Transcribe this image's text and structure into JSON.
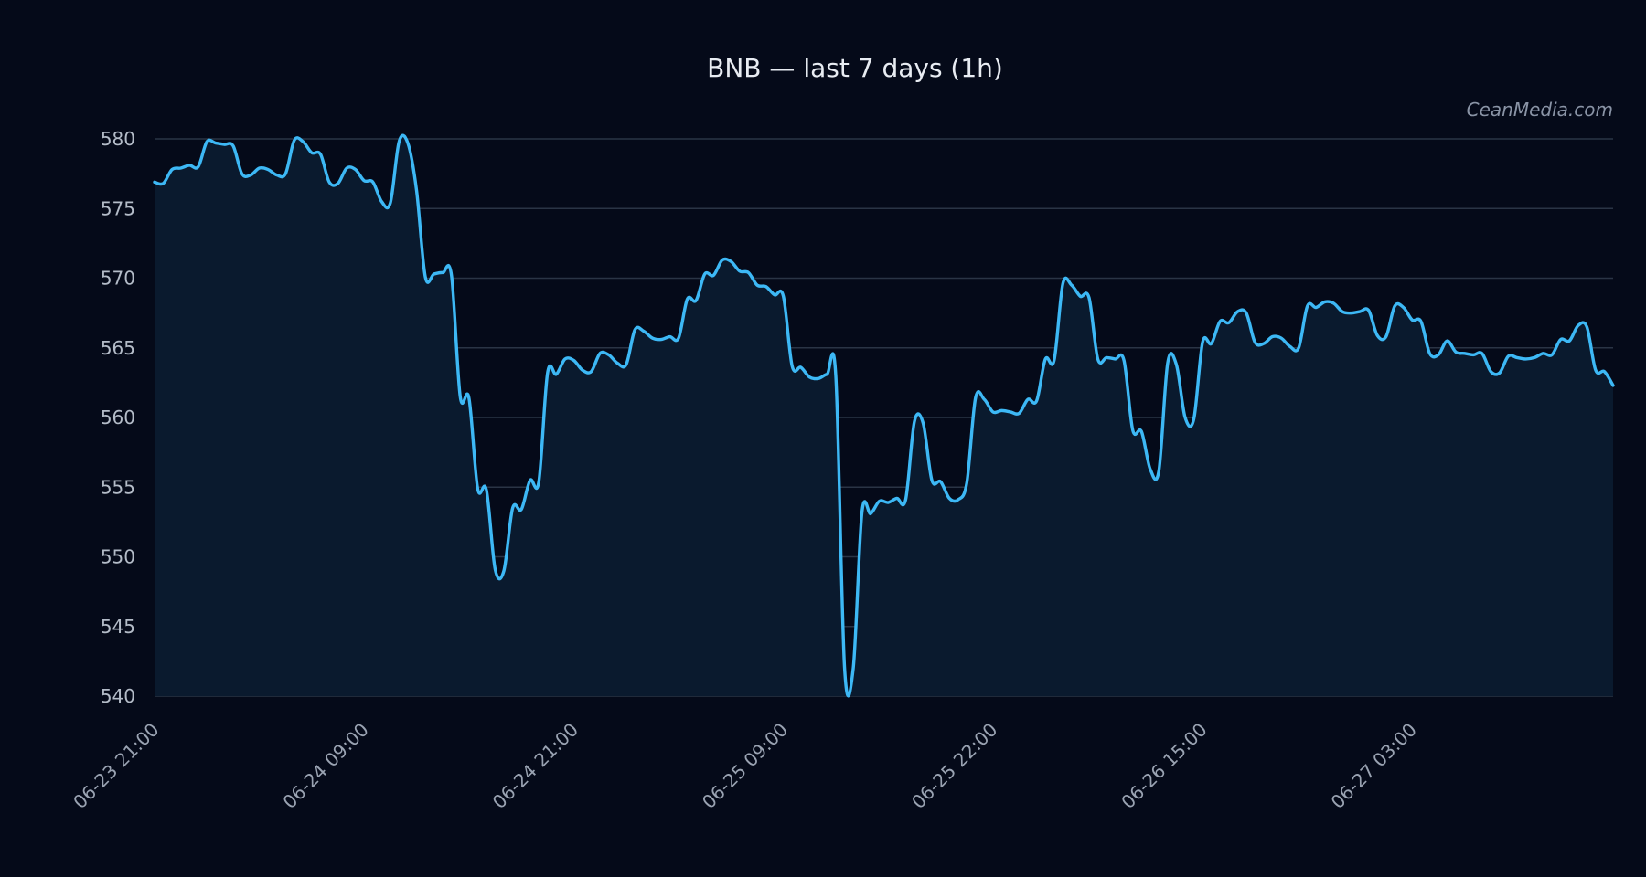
{
  "chart_data": {
    "type": "area",
    "title": "BNB — last 7 days (1h)",
    "watermark": "CeanMedia.com",
    "xlabel": "",
    "ylabel": "",
    "ylim": [
      540,
      580
    ],
    "yticks": [
      540,
      545,
      550,
      555,
      560,
      565,
      570,
      575,
      580
    ],
    "xticks": [
      {
        "label": "06-23 21:00",
        "x": 0
      },
      {
        "label": "06-24 09:00",
        "x": 24
      },
      {
        "label": "06-24 21:00",
        "x": 48
      },
      {
        "label": "06-25 09:00",
        "x": 72
      },
      {
        "label": "06-25 22:00",
        "x": 96
      },
      {
        "label": "06-26 15:00",
        "x": 120
      },
      {
        "label": "06-27 03:00",
        "x": 144
      }
    ],
    "grid": true,
    "colors": {
      "line": "#3db8f5",
      "fill": "#0a1a2e",
      "background": "#050a19"
    },
    "series": [
      {
        "name": "",
        "values": [
          576.9,
          576.8,
          577.8,
          577.9,
          578.1,
          578.0,
          579.8,
          579.7,
          579.6,
          579.5,
          577.5,
          577.4,
          577.9,
          577.8,
          577.4,
          577.5,
          579.9,
          579.8,
          579.0,
          578.9,
          576.9,
          576.8,
          577.9,
          577.8,
          577.0,
          576.9,
          575.5,
          575.4,
          579.8,
          579.7,
          576.3,
          570.1,
          570.3,
          570.4,
          570.2,
          561.5,
          561.4,
          554.9,
          554.8,
          549.1,
          549.0,
          553.5,
          553.4,
          555.5,
          555.4,
          563.2,
          563.1,
          564.2,
          564.1,
          563.4,
          563.3,
          564.6,
          564.5,
          563.9,
          563.8,
          566.3,
          566.2,
          565.7,
          565.6,
          565.8,
          565.7,
          568.5,
          568.4,
          570.3,
          570.2,
          571.3,
          571.2,
          570.5,
          570.4,
          569.5,
          569.4,
          568.8,
          568.7,
          563.7,
          563.6,
          562.9,
          562.8,
          563.1,
          563.0,
          542.1,
          542.0,
          553.2,
          553.1,
          554.0,
          553.9,
          554.2,
          554.1,
          559.7,
          559.6,
          555.5,
          555.4,
          554.2,
          554.1,
          555.3,
          561.4,
          561.3,
          560.4,
          560.5,
          560.4,
          560.3,
          561.3,
          561.2,
          564.2,
          564.1,
          569.6,
          569.5,
          568.7,
          568.6,
          564.2,
          564.3,
          564.2,
          564.1,
          559.1,
          559.0,
          556.3,
          556.2,
          563.9,
          563.8,
          560.0,
          559.9,
          565.4,
          565.3,
          566.9,
          566.8,
          567.6,
          567.5,
          565.4,
          565.3,
          565.8,
          565.7,
          565.1,
          565.0,
          568.0,
          567.9,
          568.3,
          568.2,
          567.6,
          567.5,
          567.6,
          567.7,
          565.9,
          565.8,
          568.0,
          567.9,
          567.0,
          566.9,
          564.6,
          564.5,
          565.5,
          564.7,
          564.6,
          564.5,
          564.6,
          563.3,
          563.2,
          564.4,
          564.3,
          564.2,
          564.3,
          564.6,
          564.5,
          565.6,
          565.5,
          566.6,
          566.5,
          563.4,
          563.3,
          562.3
        ]
      }
    ]
  }
}
